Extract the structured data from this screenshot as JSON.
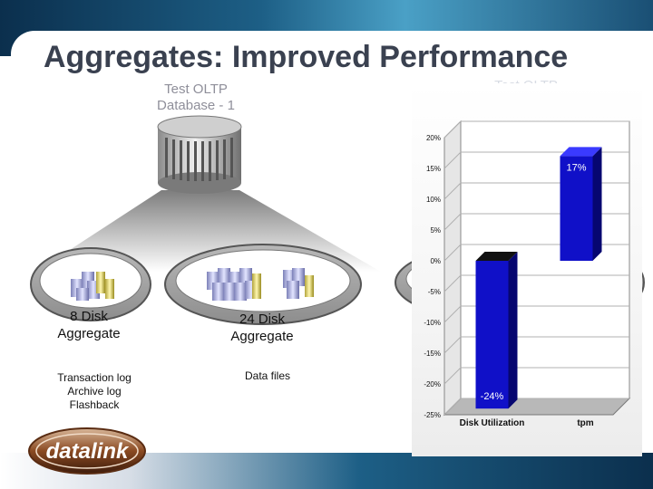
{
  "slide": {
    "title": "Aggregates: Improved Performance",
    "db_label_left": "Test OLTP\nDatabase - 1",
    "db_label_right": "Test OLTP"
  },
  "aggregates": [
    {
      "name": "8 Disk\nAggregate",
      "note": "Transaction log\nArchive log\nFlashback"
    },
    {
      "name": "24 Disk\nAggregate",
      "note": "Data files"
    }
  ],
  "logo": {
    "text": "datalink"
  },
  "colors": {
    "bar": "#1010c8",
    "bar_top": "#3a3aff",
    "bar_side": "#060670",
    "title": "#3a4150"
  },
  "chart_data": {
    "type": "bar",
    "categories": [
      "Disk Utilization",
      "tpm"
    ],
    "values": [
      -24,
      17
    ],
    "data_labels": [
      "-24%",
      "17%"
    ],
    "y_ticks": [
      "20%",
      "15%",
      "10%",
      "5%",
      "0%",
      "-5%",
      "-10%",
      "-15%",
      "-20%",
      "-25%"
    ],
    "ylim": [
      -25,
      20
    ],
    "grid": true,
    "title": "",
    "xlabel": "",
    "ylabel": ""
  }
}
